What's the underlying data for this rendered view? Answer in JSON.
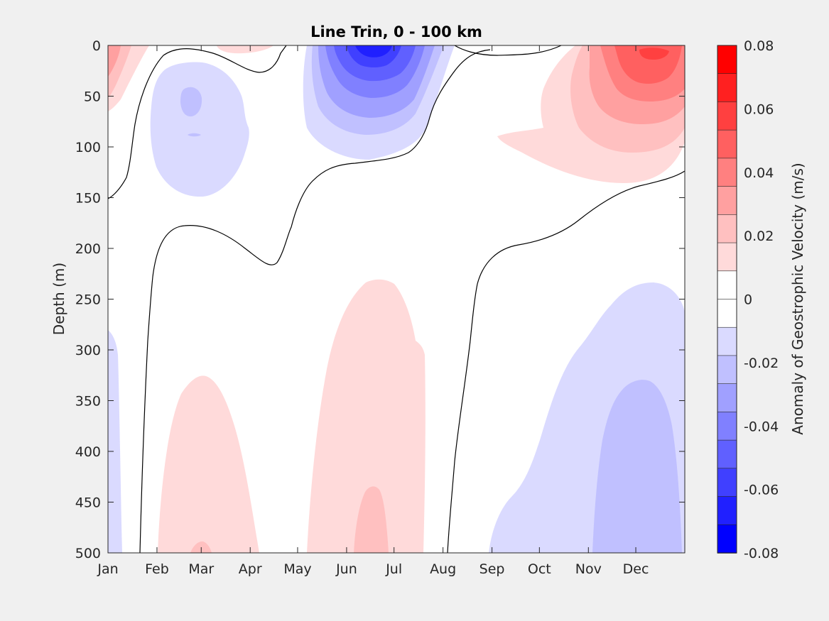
{
  "chart_data": {
    "type": "heatmap",
    "subtype": "filled-contour",
    "title": "Line Trin, 0 - 100 km",
    "xlabel": "",
    "ylabel": "Depth (m)",
    "x_tick_labels": [
      "Jan",
      "Feb",
      "Mar",
      "Apr",
      "May",
      "Jun",
      "Jul",
      "Aug",
      "Sep",
      "Oct",
      "Nov",
      "Dec"
    ],
    "y_tick_labels": [
      "0",
      "50",
      "100",
      "150",
      "200",
      "250",
      "300",
      "350",
      "400",
      "450",
      "500"
    ],
    "y_ticks": [
      0,
      50,
      100,
      150,
      200,
      250,
      300,
      350,
      400,
      450,
      500
    ],
    "ylim": [
      0,
      500
    ],
    "y_reversed": true,
    "colorbar": {
      "label": "Anomaly of Geostrophic Velocity (m/s)",
      "range": [
        -0.08,
        0.08
      ],
      "tick_values": [
        0.08,
        0.06,
        0.04,
        0.02,
        0,
        -0.02,
        -0.04,
        -0.06,
        -0.08
      ],
      "tick_labels": [
        "0.08",
        "0.06",
        "0.04",
        "0.02",
        "0",
        "-0.02",
        "-0.04",
        "-0.06",
        "-0.08"
      ],
      "levels": 16,
      "colors_top_to_bottom": [
        "#ff0000",
        "#ff2020",
        "#ff4040",
        "#ff6060",
        "#ff8080",
        "#ffa0a0",
        "#ffc0c0",
        "#ffdada",
        "#ffffff",
        "#ffffff",
        "#dadaff",
        "#c0c0ff",
        "#a0a0ff",
        "#8080ff",
        "#6060ff",
        "#4040ff",
        "#2020ff",
        "#0000ff"
      ]
    },
    "features": [
      {
        "sign": "positive",
        "max": 0.06,
        "location": "Dec",
        "depth": [
          0,
          150
        ]
      },
      {
        "sign": "negative",
        "min": -0.06,
        "location": "Jun",
        "depth": [
          0,
          110
        ]
      },
      {
        "sign": "negative",
        "min": -0.02,
        "location": "Feb-Apr",
        "depth": [
          20,
          145
        ]
      },
      {
        "sign": "positive",
        "max": 0.02,
        "location": "Jan",
        "depth": [
          0,
          100
        ]
      },
      {
        "sign": "positive",
        "max": 0.01,
        "location": "Feb-Apr",
        "depth": [
          325,
          500
        ]
      },
      {
        "sign": "positive",
        "max": 0.02,
        "location": "May-Jul",
        "depth": [
          230,
          500
        ]
      },
      {
        "sign": "negative",
        "max": -0.02,
        "location": "Sep-Dec",
        "depth": [
          230,
          500
        ]
      },
      {
        "sign": "negative",
        "max": -0.01,
        "location": "Jan",
        "depth": [
          280,
          500
        ]
      }
    ]
  }
}
